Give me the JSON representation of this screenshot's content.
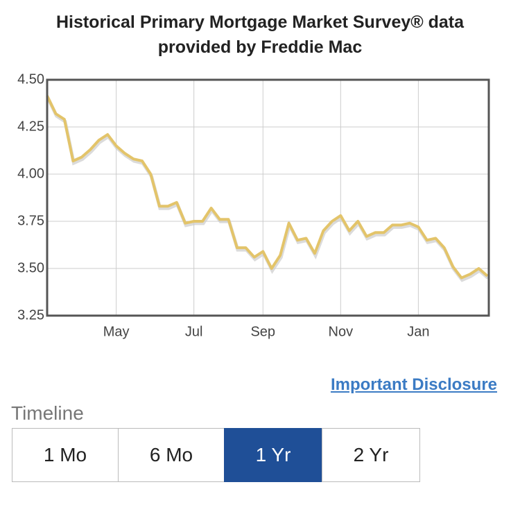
{
  "chart_data": {
    "type": "line",
    "title": "Historical Primary Mortgage Market Survey® data provided by Freddie Mac",
    "categories": [
      null,
      null,
      null,
      null,
      null,
      null,
      null,
      null,
      "May",
      null,
      null,
      null,
      null,
      null,
      null,
      null,
      null,
      "Jul",
      null,
      null,
      null,
      null,
      null,
      null,
      null,
      "Sep",
      null,
      null,
      null,
      null,
      null,
      null,
      null,
      null,
      "Nov",
      null,
      null,
      null,
      null,
      null,
      null,
      null,
      null,
      "Jan",
      null,
      null,
      null,
      null,
      null,
      null,
      null,
      null
    ],
    "values": [
      4.415,
      4.32,
      4.29,
      4.07,
      4.09,
      4.13,
      4.18,
      4.21,
      4.15,
      4.11,
      4.08,
      4.07,
      4.0,
      3.83,
      3.83,
      3.85,
      3.74,
      3.75,
      3.75,
      3.82,
      3.76,
      3.76,
      3.61,
      3.61,
      3.56,
      3.59,
      3.5,
      3.57,
      3.74,
      3.65,
      3.66,
      3.58,
      3.7,
      3.75,
      3.78,
      3.7,
      3.75,
      3.67,
      3.69,
      3.69,
      3.73,
      3.73,
      3.74,
      3.72,
      3.65,
      3.66,
      3.61,
      3.51,
      3.45,
      3.47,
      3.5,
      3.46
    ],
    "color": "#e3c46a",
    "ylim": [
      3.25,
      4.5
    ],
    "yticks": [
      {
        "value": 3.25,
        "label": "3.25"
      },
      {
        "value": 3.5,
        "label": "3.50"
      },
      {
        "value": 3.75,
        "label": "3.75"
      },
      {
        "value": 4.0,
        "label": "4.00"
      },
      {
        "value": 4.25,
        "label": "4.25"
      },
      {
        "value": 4.5,
        "label": "4.50"
      }
    ],
    "grid": true
  },
  "disclosure": "Important Disclosure",
  "timeline": {
    "label": "Timeline",
    "buttons": [
      "1 Mo",
      "6 Mo",
      "1 Yr",
      "2 Yr"
    ]
  }
}
